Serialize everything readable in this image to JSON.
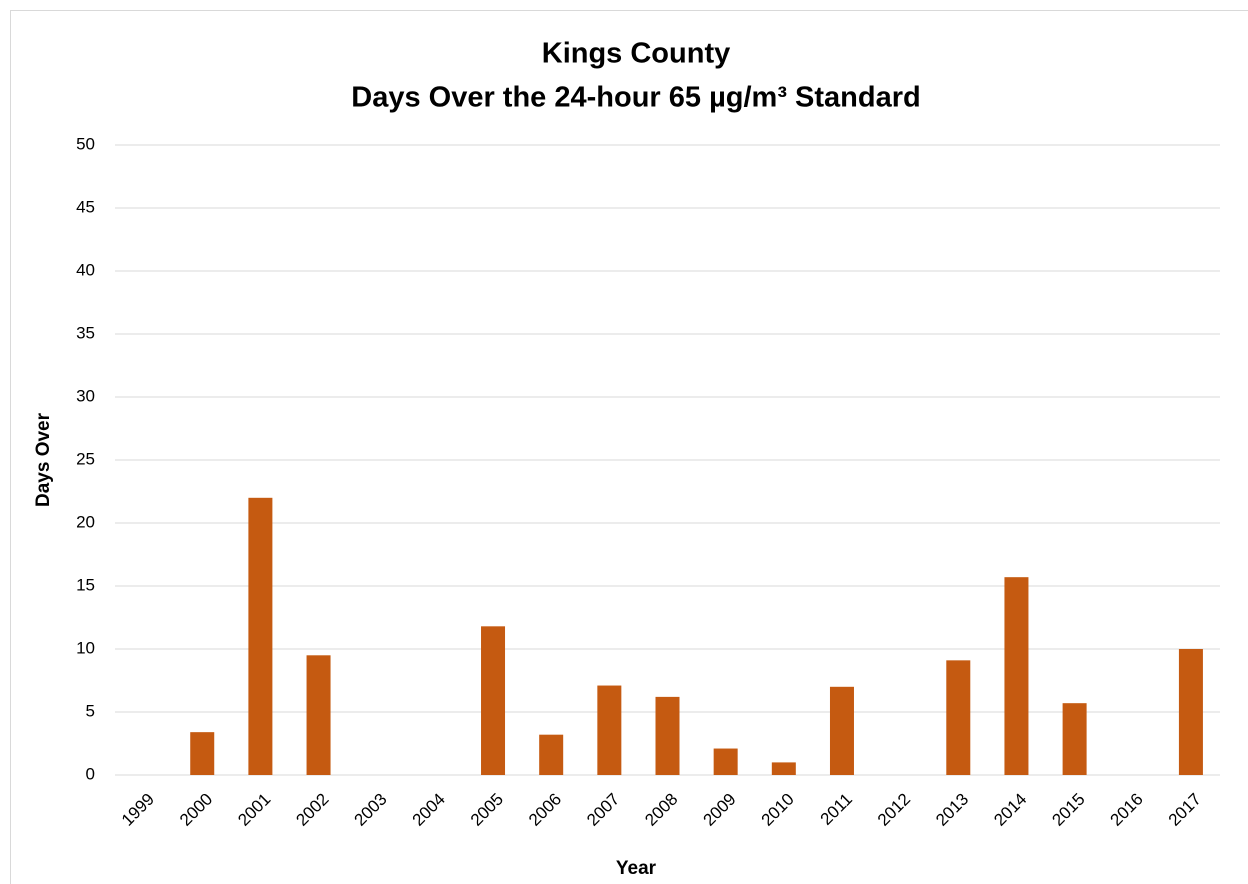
{
  "chart_data": {
    "type": "bar",
    "title": "Kings County",
    "subtitle": "Days Over the 24-hour 65 µg/m³ Standard",
    "x_label": "Year",
    "y_label": "Days Over",
    "categories": [
      "1999",
      "2000",
      "2001",
      "2002",
      "2003",
      "2004",
      "2005",
      "2006",
      "2007",
      "2008",
      "2009",
      "2010",
      "2011",
      "2012",
      "2013",
      "2014",
      "2015",
      "2016",
      "2017"
    ],
    "values": [
      0,
      3.4,
      22,
      9.5,
      0,
      0,
      11.8,
      3.2,
      7.1,
      6.2,
      2.1,
      1.0,
      7.0,
      0,
      9.1,
      15.7,
      5.7,
      0,
      10.0
    ],
    "color": "#c55a11",
    "ylim": [
      0,
      50
    ],
    "yticks": [
      0,
      5,
      10,
      15,
      20,
      25,
      30,
      35,
      40,
      45,
      50
    ],
    "grid": true
  }
}
